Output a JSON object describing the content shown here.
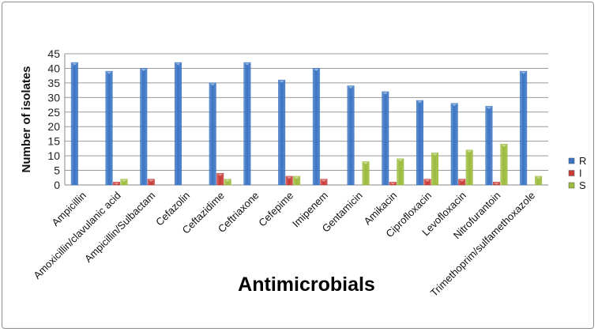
{
  "chart_data": {
    "type": "bar",
    "title": "",
    "xlabel": "Antimicrobials",
    "ylabel": "Number of isolates",
    "ylim": [
      0,
      45
    ],
    "yticks": [
      0,
      5,
      10,
      15,
      20,
      25,
      30,
      35,
      40,
      45
    ],
    "grid": true,
    "legend_position": "right",
    "categories": [
      "Ampicillin",
      "Amoxicillin/clavulanic acid",
      "Ampicillin/Sulbactam",
      "Cefazolin",
      "Ceftazidime",
      "Ceftriaxone",
      "Cefepime",
      "Imipenem",
      "Gentamicin",
      "Amikacin",
      "Ciprofloxacin",
      "Levofloxacin",
      "Nitrofurantoin",
      "Trimethoprim/sulfamethoxazole"
    ],
    "series": [
      {
        "name": "R",
        "color": "#3a74c4",
        "values": [
          42,
          39,
          40,
          42,
          35,
          42,
          36,
          40,
          34,
          32,
          29,
          28,
          27,
          39
        ]
      },
      {
        "name": "I",
        "color": "#c83a36",
        "values": [
          0,
          1,
          2,
          0,
          4,
          0,
          3,
          2,
          0,
          1,
          2,
          2,
          1,
          0
        ]
      },
      {
        "name": "S",
        "color": "#9bbb3c",
        "values": [
          0,
          2,
          0,
          0,
          2,
          0,
          3,
          0,
          8,
          9,
          11,
          12,
          14,
          3
        ]
      }
    ]
  }
}
